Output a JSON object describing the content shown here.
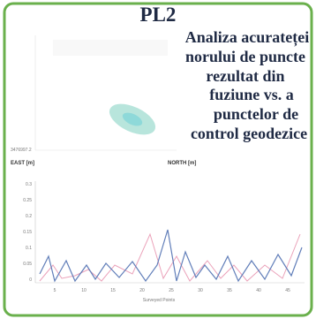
{
  "title": "PL2",
  "heading": {
    "lines": [
      "Analiza acurateței",
      "norului de puncte",
      "rezultat din",
      "fuziune vs. a",
      "punctelor de",
      "control geodezice"
    ]
  },
  "figure": {
    "east_label": "EAST [m]",
    "north_label": "NORTH [m]",
    "coord_label": "3476997.2",
    "x_axis_title": "Surveyed Points",
    "y_ticks": [
      "0.3",
      "0.25",
      "0.2",
      "0.15",
      "0.1",
      "0.05",
      "0"
    ],
    "x_ticks": [
      "5",
      "10",
      "15",
      "20",
      "25",
      "30",
      "35",
      "40",
      "45"
    ]
  }
}
